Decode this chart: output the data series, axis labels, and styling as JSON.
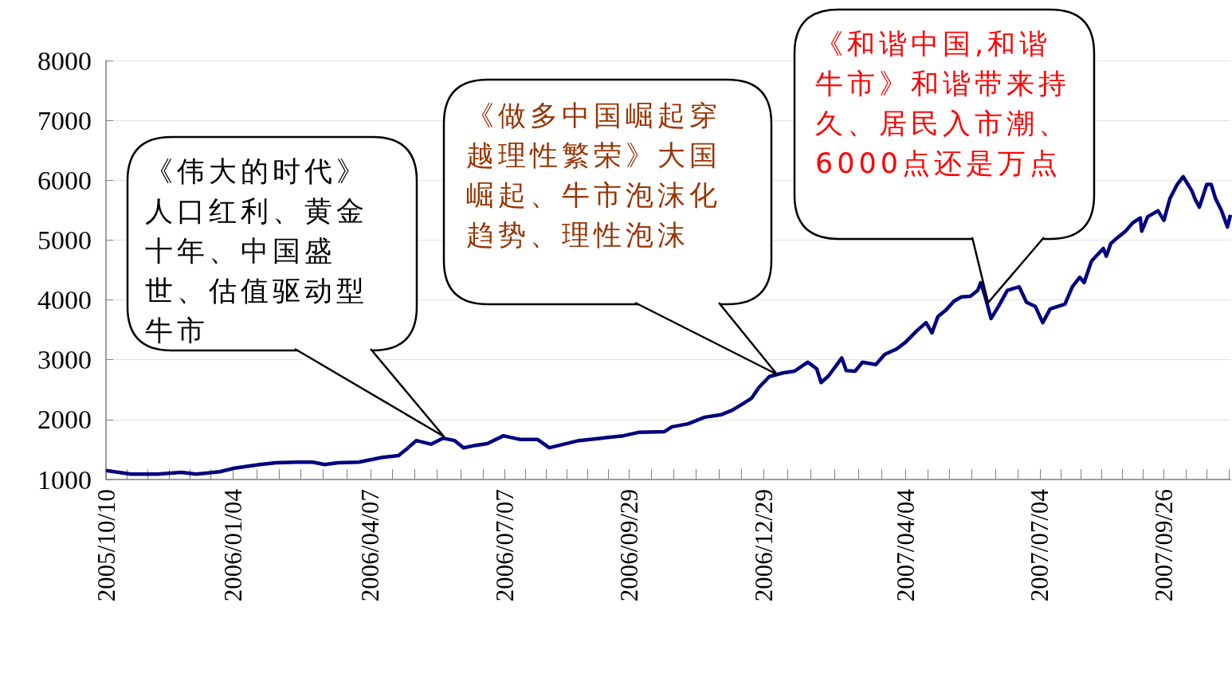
{
  "chart_data": {
    "type": "line",
    "color": "#000080",
    "x": [
      "2005-10-10",
      "2005-10-27",
      "2005-11-14",
      "2005-11-30",
      "2005-12-10",
      "2005-12-26",
      "2006-01-05",
      "2006-01-22",
      "2006-02-02",
      "2006-02-16",
      "2006-02-27",
      "2006-03-07",
      "2006-03-16",
      "2006-03-30",
      "2006-04-07",
      "2006-04-15",
      "2006-04-26",
      "2006-05-02",
      "2006-05-08",
      "2006-05-18",
      "2006-05-26",
      "2006-06-03",
      "2006-06-09",
      "2006-06-17",
      "2006-06-25",
      "2006-07-06",
      "2006-07-17",
      "2006-07-29",
      "2006-08-06",
      "2006-08-16",
      "2006-08-26",
      "2006-09-10",
      "2006-09-25",
      "2006-10-06",
      "2006-10-23",
      "2006-10-28",
      "2006-11-08",
      "2006-11-19",
      "2006-11-30",
      "2006-12-08",
      "2006-12-14",
      "2006-12-21",
      "2006-12-26",
      "2007-01-02",
      "2007-01-11",
      "2007-01-19",
      "2007-01-28",
      "2007-02-03",
      "2007-02-06",
      "2007-02-11",
      "2007-02-20",
      "2007-02-23",
      "2007-03-01",
      "2007-03-06",
      "2007-03-15",
      "2007-03-21",
      "2007-03-29",
      "2007-04-04",
      "2007-04-12",
      "2007-04-18",
      "2007-04-22",
      "2007-04-26",
      "2007-05-01",
      "2007-05-07",
      "2007-05-12",
      "2007-05-18",
      "2007-05-23",
      "2007-05-25",
      "2007-05-28",
      "2007-06-01",
      "2007-06-06",
      "2007-06-12",
      "2007-06-20",
      "2007-06-25",
      "2007-07-01",
      "2007-07-06",
      "2007-07-11",
      "2007-07-21",
      "2007-07-26",
      "2007-07-31",
      "2007-08-03",
      "2007-08-08",
      "2007-08-16",
      "2007-08-18",
      "2007-08-21",
      "2007-08-26",
      "2007-08-31",
      "2007-09-05",
      "2007-09-10",
      "2007-09-11",
      "2007-09-15",
      "2007-09-22",
      "2007-09-26",
      "2007-09-30",
      "2007-10-05",
      "2007-10-09",
      "2007-10-11",
      "2007-10-15",
      "2007-10-17",
      "2007-10-20",
      "2007-10-25",
      "2007-10-28",
      "2007-10-31",
      "2007-11-04",
      "2007-11-08",
      "2007-11-10"
    ],
    "values": [
      1150,
      1090,
      1090,
      1120,
      1090,
      1130,
      1190,
      1250,
      1280,
      1290,
      1290,
      1250,
      1280,
      1290,
      1330,
      1370,
      1400,
      1520,
      1650,
      1590,
      1690,
      1650,
      1530,
      1570,
      1600,
      1730,
      1670,
      1670,
      1530,
      1590,
      1650,
      1690,
      1730,
      1790,
      1800,
      1880,
      1930,
      2040,
      2080,
      2160,
      2250,
      2360,
      2540,
      2720,
      2780,
      2810,
      2960,
      2850,
      2620,
      2730,
      3030,
      2820,
      2810,
      2960,
      2920,
      3090,
      3180,
      3290,
      3490,
      3620,
      3450,
      3720,
      3820,
      3980,
      4050,
      4060,
      4160,
      4290,
      4060,
      3690,
      3890,
      4160,
      4220,
      3960,
      3890,
      3620,
      3850,
      3930,
      4220,
      4380,
      4290,
      4650,
      4860,
      4730,
      4940,
      5050,
      5150,
      5290,
      5370,
      5150,
      5390,
      5490,
      5330,
      5690,
      5930,
      6060,
      5980,
      5820,
      5690,
      5550,
      5930,
      5930,
      5690,
      5490,
      5220,
      5420
    ],
    "xlim": [
      "2005-10-10",
      "2007-11-10"
    ],
    "xticks": [
      {
        "value": "2005-10-10",
        "label": "2005/10/10"
      },
      {
        "value": "2005-10-24",
        "label": null
      },
      {
        "value": "2005-11-07",
        "label": null
      },
      {
        "value": "2005-11-22",
        "label": null
      },
      {
        "value": "2005-12-06",
        "label": null
      },
      {
        "value": "2005-12-20",
        "label": null
      },
      {
        "value": "2006-01-04",
        "label": "2006/01/04"
      },
      {
        "value": "2006-01-20",
        "label": null
      },
      {
        "value": "2006-02-04",
        "label": null
      },
      {
        "value": "2006-02-19",
        "label": null
      },
      {
        "value": "2006-03-06",
        "label": null
      },
      {
        "value": "2006-03-22",
        "label": null
      },
      {
        "value": "2006-04-07",
        "label": "2006/04/07"
      },
      {
        "value": "2006-04-22",
        "label": null
      },
      {
        "value": "2006-05-07",
        "label": null
      },
      {
        "value": "2006-05-22",
        "label": null
      },
      {
        "value": "2006-06-07",
        "label": null
      },
      {
        "value": "2006-06-22",
        "label": null
      },
      {
        "value": "2006-07-07",
        "label": "2006/07/07"
      },
      {
        "value": "2006-07-21",
        "label": null
      },
      {
        "value": "2006-08-04",
        "label": null
      },
      {
        "value": "2006-08-18",
        "label": null
      },
      {
        "value": "2006-09-01",
        "label": null
      },
      {
        "value": "2006-09-15",
        "label": null
      },
      {
        "value": "2006-09-29",
        "label": "2006/09/29"
      },
      {
        "value": "2006-10-14",
        "label": null
      },
      {
        "value": "2006-10-29",
        "label": null
      },
      {
        "value": "2006-11-13",
        "label": null
      },
      {
        "value": "2006-11-29",
        "label": null
      },
      {
        "value": "2006-12-14",
        "label": null
      },
      {
        "value": "2006-12-29",
        "label": "2006/12/29"
      },
      {
        "value": "2007-01-14",
        "label": null
      },
      {
        "value": "2007-01-30",
        "label": null
      },
      {
        "value": "2007-02-15",
        "label": null
      },
      {
        "value": "2007-03-03",
        "label": null
      },
      {
        "value": "2007-03-19",
        "label": null
      },
      {
        "value": "2007-04-04",
        "label": "2007/04/04"
      },
      {
        "value": "2007-04-19",
        "label": null
      },
      {
        "value": "2007-05-04",
        "label": null
      },
      {
        "value": "2007-05-19",
        "label": null
      },
      {
        "value": "2007-06-04",
        "label": null
      },
      {
        "value": "2007-06-19",
        "label": null
      },
      {
        "value": "2007-07-04",
        "label": "2007/07/04"
      },
      {
        "value": "2007-07-18",
        "label": null
      },
      {
        "value": "2007-08-01",
        "label": null
      },
      {
        "value": "2007-08-15",
        "label": null
      },
      {
        "value": "2007-08-29",
        "label": null
      },
      {
        "value": "2007-09-12",
        "label": null
      },
      {
        "value": "2007-09-26",
        "label": "2007/09/26"
      },
      {
        "value": "2007-10-11",
        "label": null
      },
      {
        "value": "2007-10-25",
        "label": null
      },
      {
        "value": "2007-11-09",
        "label": null
      }
    ],
    "ylim": [
      1000,
      8000
    ],
    "yticks": [
      1000,
      2000,
      3000,
      4000,
      5000,
      6000,
      7000,
      8000
    ],
    "grid": "y",
    "annotations": [
      "《伟大的时代》人口红利、黄金十年、中国盛世、估值驱动型牛市",
      "《做多中国崛起穿越理性繁荣》大国崛起、牛市泡沫化趋势、理性泡沫",
      "《和谐中国,和谐牛市》和谐带来持久、居民入市潮、6000点还是万点"
    ]
  }
}
